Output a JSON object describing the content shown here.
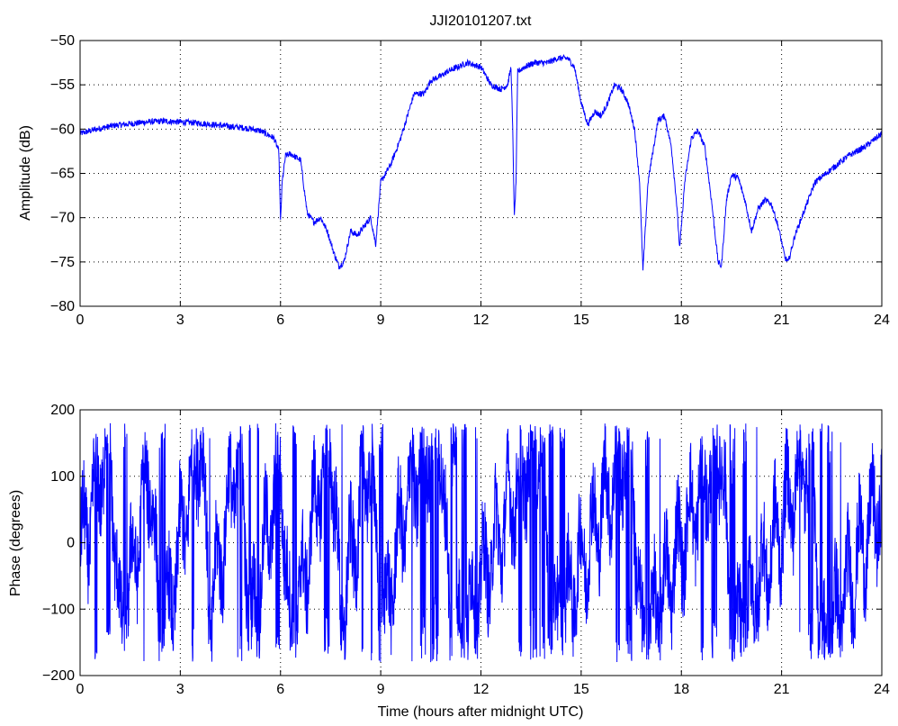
{
  "chart_data": [
    {
      "type": "line",
      "title": "JJI20101207.txt",
      "xlabel": "",
      "ylabel": "Amplitude (dB)",
      "xlim": [
        0,
        24
      ],
      "ylim": [
        -80,
        -50
      ],
      "grid": true,
      "line_color": "#0000ff",
      "xticks": [
        0,
        3,
        6,
        9,
        12,
        15,
        18,
        21,
        24
      ],
      "xtick_labels": [
        "0",
        "3",
        "6",
        "9",
        "12",
        "15",
        "18",
        "21",
        "24"
      ],
      "yticks": [
        -80,
        -75,
        -70,
        -65,
        -60,
        -55,
        -50
      ],
      "ytick_labels": [
        "−80",
        "−75",
        "−70",
        "−65",
        "−60",
        "−55",
        "−50"
      ],
      "series": [
        {
          "x": [
            0,
            0.5,
            1,
            1.5,
            2,
            2.5,
            3,
            3.5,
            4,
            4.5,
            5,
            5.4,
            5.8,
            5.95,
            6.0,
            6.05,
            6.15,
            6.3,
            6.6,
            6.7,
            6.8,
            7.0,
            7.2,
            7.4,
            7.6,
            7.75,
            7.9,
            8.1,
            8.3,
            8.5,
            8.7,
            8.85,
            9.0,
            9.3,
            9.6,
            9.8,
            10.0,
            10.3,
            10.5,
            10.8,
            11.0,
            11.3,
            11.6,
            12.0,
            12.3,
            12.6,
            12.8,
            12.9,
            12.95,
            13.0,
            13.05,
            13.1,
            13.3,
            13.6,
            14.0,
            14.3,
            14.6,
            14.8,
            15.0,
            15.2,
            15.4,
            15.6,
            15.8,
            16.0,
            16.2,
            16.4,
            16.6,
            16.75,
            16.85,
            17.0,
            17.3,
            17.5,
            17.7,
            17.85,
            17.95,
            18.1,
            18.3,
            18.5,
            18.7,
            18.9,
            19.1,
            19.2,
            19.35,
            19.5,
            19.7,
            19.9,
            20.1,
            20.3,
            20.5,
            20.7,
            20.9,
            21.1,
            21.2,
            21.4,
            21.6,
            21.8,
            22.0,
            22.5,
            23.0,
            23.5,
            24.0
          ],
          "y": [
            -60.5,
            -60.0,
            -59.6,
            -59.4,
            -59.2,
            -59.1,
            -59.2,
            -59.3,
            -59.5,
            -59.7,
            -59.9,
            -60.2,
            -61.0,
            -62.5,
            -70.5,
            -66.0,
            -63.0,
            -62.8,
            -63.5,
            -66.5,
            -69.5,
            -70.5,
            -70.0,
            -71.5,
            -74.0,
            -75.5,
            -75.0,
            -71.5,
            -72.0,
            -71.0,
            -70.0,
            -73.0,
            -66.0,
            -64.0,
            -61.0,
            -58.5,
            -56.0,
            -56.0,
            -54.5,
            -54.0,
            -53.5,
            -53.0,
            -52.5,
            -53.0,
            -55.0,
            -55.5,
            -55.0,
            -53.0,
            -60.0,
            -70.0,
            -66.0,
            -53.5,
            -53.0,
            -52.5,
            -52.5,
            -52.0,
            -52.0,
            -53.0,
            -57.0,
            -59.5,
            -58.0,
            -58.5,
            -57.0,
            -55.0,
            -55.5,
            -57.0,
            -60.0,
            -66.0,
            -76.0,
            -66.0,
            -59.0,
            -58.5,
            -62.0,
            -68.0,
            -73.5,
            -66.0,
            -61.0,
            -60.2,
            -62.0,
            -68.0,
            -75.0,
            -75.5,
            -68.0,
            -65.2,
            -65.5,
            -68.0,
            -71.5,
            -69.0,
            -68.0,
            -68.5,
            -71.0,
            -74.5,
            -75.0,
            -72.0,
            -70.0,
            -68.0,
            -66.0,
            -64.5,
            -63.0,
            -62.0,
            -60.5
          ]
        }
      ]
    },
    {
      "type": "line",
      "title": "",
      "xlabel": "Time (hours after midnight UTC)",
      "ylabel": "Phase (degrees)",
      "xlim": [
        0,
        24
      ],
      "ylim": [
        -200,
        200
      ],
      "grid": true,
      "line_color": "#0000ff",
      "xticks": [
        0,
        3,
        6,
        9,
        12,
        15,
        18,
        21,
        24
      ],
      "xtick_labels": [
        "0",
        "3",
        "6",
        "9",
        "12",
        "15",
        "18",
        "21",
        "24"
      ],
      "yticks": [
        -200,
        -100,
        0,
        100,
        200
      ],
      "ytick_labels": [
        "−200",
        "−100",
        "0",
        "100",
        "200"
      ],
      "wrap_range": [
        -180,
        180
      ],
      "series": [
        {
          "x": [
            0,
            0.3,
            0.6,
            0.9,
            1.2,
            1.5,
            1.8,
            2.1,
            2.4,
            2.7,
            3.0,
            3.3,
            3.6,
            3.9,
            4.2,
            4.5,
            4.8,
            5.1,
            5.4,
            5.7,
            6.0,
            6.3,
            6.6,
            6.9,
            7.2,
            7.5,
            7.8,
            8.1,
            8.4,
            8.7,
            9.0,
            9.3,
            9.6,
            9.9,
            10.2,
            10.5,
            10.8,
            11.1,
            11.4,
            11.7,
            12.0,
            12.3,
            12.6,
            12.9,
            13.2,
            13.5,
            13.8,
            14.1,
            14.4,
            14.7,
            15.0,
            15.3,
            15.6,
            15.9,
            16.2,
            16.5,
            16.8,
            17.1,
            17.4,
            17.7,
            18.0,
            18.3,
            18.6,
            18.9,
            19.2,
            19.5,
            19.8,
            20.1,
            20.4,
            20.7,
            21.0,
            21.3,
            21.6,
            21.9,
            22.2,
            22.5,
            22.8,
            23.1,
            23.4,
            23.7,
            24.0
          ],
          "y": [
            -20,
            40,
            110,
            160,
            -150,
            -60,
            30,
            120,
            -170,
            -90,
            0,
            90,
            170,
            -110,
            -20,
            70,
            150,
            -140,
            -50,
            40,
            130,
            -160,
            -80,
            10,
            100,
            175,
            -120,
            -30,
            60,
            140,
            -150,
            -60,
            20,
            80,
            120,
            150,
            170,
            -170,
            -140,
            -100,
            -60,
            -20,
            20,
            60,
            100,
            140,
            175,
            -150,
            -110,
            -70,
            -30,
            10,
            50,
            90,
            130,
            165,
            -160,
            -120,
            -80,
            -40,
            0,
            40,
            80,
            120,
            160,
            -170,
            -130,
            -90,
            -50,
            -10,
            30,
            70,
            110,
            150,
            -170,
            -130,
            -90,
            -50,
            -10,
            30,
            70
          ]
        }
      ]
    }
  ]
}
